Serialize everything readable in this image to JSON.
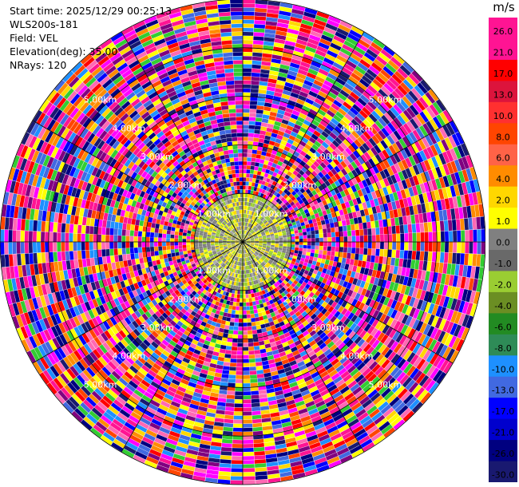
{
  "info": {
    "start_time": "Start time: 2025/12/29 00:25:13",
    "device": "WLS200s-181",
    "field": "Field: VEL",
    "elevation": "Elevation(deg): 35.00",
    "nrays": "NRays: 120"
  },
  "colorbar": {
    "unit": "m/s",
    "ticks": [
      "26.0",
      "21.0",
      "17.0",
      "13.0",
      "10.0",
      "8.0",
      "6.0",
      "4.0",
      "2.0",
      "1.0",
      "0.0",
      "-1.0",
      "-2.0",
      "-4.0",
      "-6.0",
      "-8.0",
      "-10.0",
      "-13.0",
      "-17.0",
      "-21.0",
      "-26.0",
      "-30.0"
    ],
    "colors": [
      "#ff1493",
      "#ff1493",
      "#ff0000",
      "#dc143c",
      "#ff3030",
      "#ff4500",
      "#ff6347",
      "#ff8c00",
      "#ffd700",
      "#ffff00",
      "#808080",
      "#696969",
      "#9acd32",
      "#6b8e23",
      "#228b22",
      "#2e8b57",
      "#1e90ff",
      "#4169e1",
      "#0000ff",
      "#0000cd",
      "#000080",
      "#191970"
    ]
  },
  "chart_data": {
    "type": "heatmap",
    "projection": "polar",
    "field": "VEL",
    "units": "m/s",
    "elevation_deg": 35.0,
    "n_rays": 120,
    "range_rings_km": [
      1.0,
      2.0,
      3.0,
      4.0,
      5.0
    ],
    "range_ring_labels": [
      "1.00km",
      "2.00km",
      "3.00km",
      "4.00km",
      "5.00km"
    ],
    "radial_lines_deg": [
      0,
      30,
      60,
      90,
      120,
      150,
      180,
      210,
      240,
      270,
      300,
      330
    ],
    "max_range_km": 5.0,
    "grid": true
  }
}
